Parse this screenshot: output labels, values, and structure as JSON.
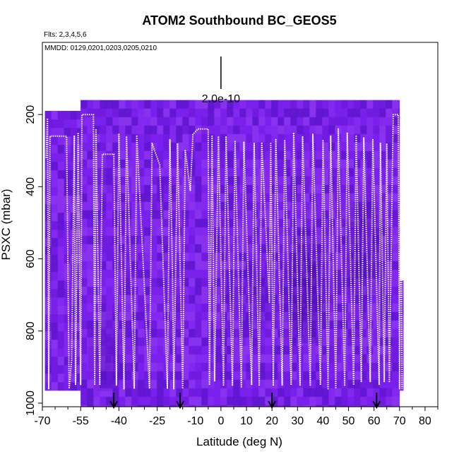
{
  "chart_data": {
    "type": "heatmap",
    "title": "ATOM2 Southbound BC_GEOS5",
    "subtitle_flights": "Flts: 2,3,4,5,6",
    "subtitle_dates": "MMDD: 0129,0201,0203,0205,0210",
    "xlabel": "Latitude (deg N)",
    "ylabel": "PSXC (mbar)",
    "xlim": [
      -70,
      85
    ],
    "ylim": [
      1010,
      0
    ],
    "x_ticks": [
      -70,
      -55,
      -40,
      -25,
      -10,
      0,
      10,
      20,
      30,
      40,
      50,
      60,
      70,
      80
    ],
    "x_tick_labels": [
      "-70",
      "-55",
      "-40",
      "-25",
      "-10",
      "0",
      "10",
      "20",
      "30",
      "40",
      "50",
      "60",
      "70",
      "80"
    ],
    "x_minor_ticks": [
      -65,
      -60,
      -50,
      -45,
      -35,
      -30,
      -20,
      -15,
      -5,
      5,
      15,
      25,
      35,
      45,
      55,
      65,
      75,
      85
    ],
    "y_ticks": [
      200,
      400,
      600,
      800,
      1000
    ],
    "y_tick_labels": [
      "200",
      "400",
      "600",
      "800",
      "1000"
    ],
    "scale_bar_label": "2.0e-10",
    "scale_bar_latitude": 0,
    "curtain_segments": [
      {
        "lat_start": -69,
        "lat_end": -55,
        "p_top": 190,
        "p_bottom": 965
      },
      {
        "lat_start": -55,
        "lat_end": 70,
        "p_top": 160,
        "p_bottom": 1010
      },
      {
        "lat_start": 70,
        "lat_end": 71.5,
        "p_top": 660,
        "p_bottom": 965
      }
    ],
    "curtain_colors": [
      "#7a20ec",
      "#8a30f0",
      "#6a18d8",
      "#5010c0",
      "#9440f0",
      "#7224e0",
      "#4a0cb0"
    ],
    "dark_regions": [
      {
        "lat_start": -52,
        "lat_end": -40,
        "p_top": 750,
        "p_bottom": 950,
        "intensity": 0.5
      },
      {
        "lat_start": 24,
        "lat_end": 40,
        "p_top": 520,
        "p_bottom": 820,
        "intensity": 0.8
      },
      {
        "lat_start": 48,
        "lat_end": 62,
        "p_top": 420,
        "p_bottom": 700,
        "intensity": 0.7
      },
      {
        "lat_start": 5,
        "lat_end": 20,
        "p_top": 600,
        "p_bottom": 780,
        "intensity": 0.35
      }
    ],
    "flight_track": [
      [
        -68.5,
        320
      ],
      [
        -68.0,
        210
      ],
      [
        -67.5,
        960
      ],
      [
        -67.0,
        260
      ],
      [
        -60.5,
        260
      ],
      [
        -59.5,
        960
      ],
      [
        -58.5,
        880
      ],
      [
        -57.5,
        260
      ],
      [
        -57.0,
        950
      ],
      [
        -56.0,
        250
      ],
      [
        -55.0,
        950
      ],
      [
        -54.5,
        200
      ],
      [
        -50.0,
        200
      ],
      [
        -49.5,
        950
      ],
      [
        -49.0,
        240
      ],
      [
        -47.5,
        950
      ],
      [
        -46.5,
        310
      ],
      [
        -42.0,
        310
      ],
      [
        -41.5,
        640
      ],
      [
        -41.0,
        950
      ],
      [
        -40.0,
        255
      ],
      [
        -38.0,
        960
      ],
      [
        -37.0,
        260
      ],
      [
        -34.0,
        960
      ],
      [
        -33.0,
        260
      ],
      [
        -28.0,
        960
      ],
      [
        -27.0,
        280
      ],
      [
        -24.0,
        340
      ],
      [
        -21.0,
        960
      ],
      [
        -20.0,
        270
      ],
      [
        -19.0,
        650
      ],
      [
        -18.5,
        960
      ],
      [
        -17.0,
        280
      ],
      [
        -15.0,
        960
      ],
      [
        -14.0,
        300
      ],
      [
        -12.0,
        410
      ],
      [
        -11.0,
        255
      ],
      [
        -9.0,
        240
      ],
      [
        -5.0,
        240
      ],
      [
        -4.5,
        950
      ],
      [
        -3.5,
        260
      ],
      [
        -2.5,
        940
      ],
      [
        -1.0,
        260
      ],
      [
        1.0,
        950
      ],
      [
        2.0,
        260
      ],
      [
        4.5,
        950
      ],
      [
        5.5,
        275
      ],
      [
        8.0,
        955
      ],
      [
        9.0,
        275
      ],
      [
        12.0,
        950
      ],
      [
        13.0,
        280
      ],
      [
        15.0,
        950
      ],
      [
        16.0,
        280
      ],
      [
        19.0,
        720
      ],
      [
        19.5,
        280
      ],
      [
        20.5,
        950
      ],
      [
        21.5,
        270
      ],
      [
        24.0,
        950
      ],
      [
        25.0,
        270
      ],
      [
        27.5,
        950
      ],
      [
        28.5,
        250
      ],
      [
        31.0,
        950
      ],
      [
        32.0,
        260
      ],
      [
        35.0,
        950
      ],
      [
        36.0,
        255
      ],
      [
        39.0,
        950
      ],
      [
        40.0,
        270
      ],
      [
        42.0,
        960
      ],
      [
        43.0,
        260
      ],
      [
        45.0,
        960
      ],
      [
        46.0,
        240
      ],
      [
        48.5,
        950
      ],
      [
        49.5,
        250
      ],
      [
        52.0,
        950
      ],
      [
        53.0,
        260
      ],
      [
        55.0,
        940
      ],
      [
        56.0,
        265
      ],
      [
        58.5,
        940
      ],
      [
        59.5,
        270
      ],
      [
        62.0,
        950
      ],
      [
        62.5,
        280
      ],
      [
        64.0,
        940
      ],
      [
        65.0,
        280
      ],
      [
        66.0,
        940
      ],
      [
        67.5,
        200
      ],
      [
        69.5,
        200
      ],
      [
        70.0,
        960
      ],
      [
        70.5,
        290
      ],
      [
        71.0,
        960
      ]
    ],
    "arrow_markers_latitude": [
      -42,
      -16,
      20,
      61
    ]
  }
}
